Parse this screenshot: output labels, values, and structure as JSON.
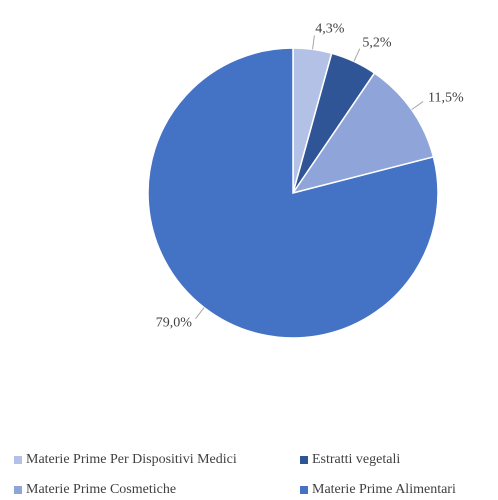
{
  "chart_data": {
    "type": "pie",
    "categories": [
      "Materie Prime Per Dispositivi Medici",
      "Estratti vegetali",
      "Materie Prime Cosmetiche",
      "Materie Prime Alimentari"
    ],
    "values": [
      4.3,
      5.2,
      11.5,
      79.0
    ],
    "value_labels": [
      "4,3%",
      "5,2%",
      "11,5%",
      "79,0%"
    ],
    "colors": [
      "#b4c1e6",
      "#2f5597",
      "#8fa5d9",
      "#4472c4"
    ],
    "legend": "bottom"
  }
}
